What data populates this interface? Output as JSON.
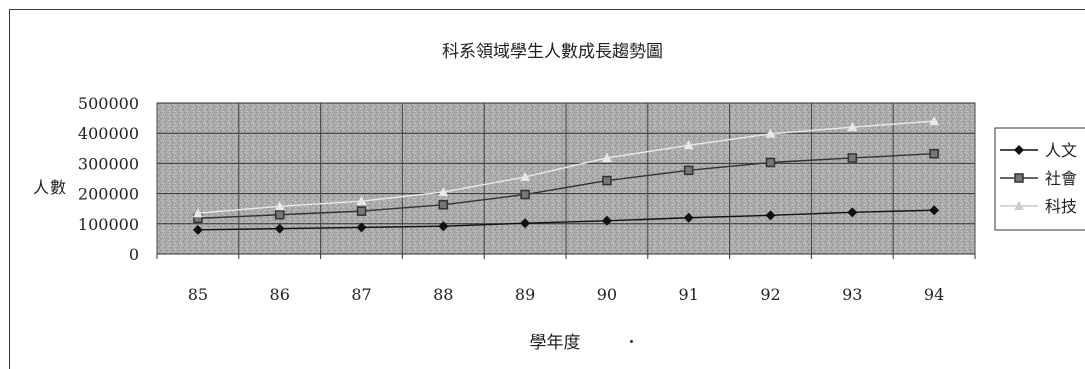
{
  "chart_data": {
    "type": "line",
    "title": "科系領域學生人數成長趨勢圖",
    "xlabel": "學年度",
    "ylabel": "人數",
    "categories": [
      "85",
      "86",
      "87",
      "88",
      "89",
      "90",
      "91",
      "92",
      "93",
      "94"
    ],
    "yticks": [
      "0",
      "100000",
      "200000",
      "300000",
      "400000",
      "500000"
    ],
    "ylim": [
      0,
      500000
    ],
    "grid": true,
    "legend_position": "right",
    "series": [
      {
        "name": "人文",
        "marker": "diamond",
        "color": "#111111",
        "values": [
          80000,
          84000,
          88000,
          92000,
          102000,
          110000,
          120000,
          128000,
          138000,
          145000
        ]
      },
      {
        "name": "社會",
        "marker": "square",
        "color": "#333333",
        "values": [
          118000,
          130000,
          142000,
          163000,
          197000,
          243000,
          277000,
          303000,
          318000,
          332000
        ]
      },
      {
        "name": "科技",
        "marker": "triangle",
        "color": "#e8e8e8",
        "values": [
          135000,
          158000,
          175000,
          205000,
          255000,
          318000,
          360000,
          398000,
          420000,
          440000
        ]
      }
    ]
  }
}
